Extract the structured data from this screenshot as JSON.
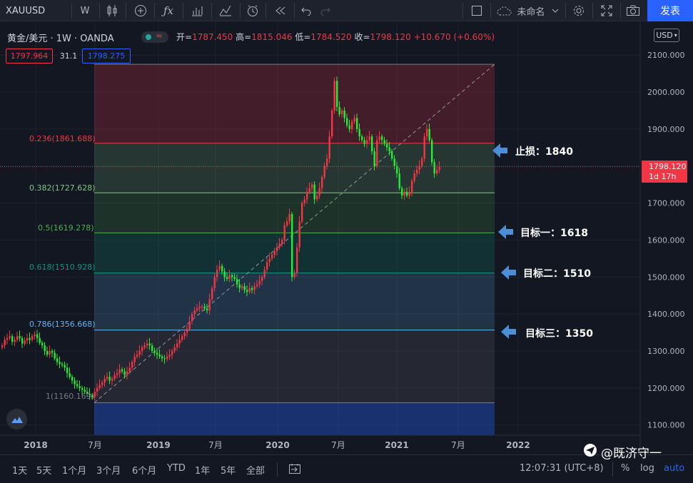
{
  "toolbar": {
    "symbol": "XAUUSD",
    "interval": "W",
    "layout_name": "未命名",
    "publish_label": "发表"
  },
  "legend": {
    "title": "黄金/美元 · 1W · OANDA",
    "open_label": "开=",
    "open": "1787.450",
    "high_label": "高=",
    "high": "1815.046",
    "low_label": "低=",
    "low": "1784.520",
    "close_label": "收=",
    "close": "1798.120",
    "change": "+10.670 (+0.60%)",
    "bid": "1797.964",
    "spread": "31.1",
    "ask": "1798.275"
  },
  "currency": "USD",
  "price_axis": {
    "ticks": [
      "2100.000",
      "2000.000",
      "1900.000",
      "1800.000",
      "1700.000",
      "1600.000",
      "1500.000",
      "1400.000",
      "1300.000",
      "1200.000",
      "1100.000"
    ],
    "last_price": "1798.120",
    "countdown": "1d 17h"
  },
  "time_axis": {
    "ticks": [
      "2018",
      "7月",
      "2019",
      "7月",
      "2020",
      "7月",
      "2021",
      "7月",
      "2022"
    ]
  },
  "fib_levels": [
    {
      "label": "0.236(1861.688)",
      "color": "#f23645"
    },
    {
      "label": "0.382(1727.628)",
      "color": "#81c784"
    },
    {
      "label": "0.5(1619.278)",
      "color": "#4caf50"
    },
    {
      "label": "0.618(1510.928)",
      "color": "#089981"
    },
    {
      "label": "0.786(1356.668)",
      "color": "#64b5f6"
    },
    {
      "label": "1(1160.169)",
      "color": "#787b86"
    }
  ],
  "annotations": {
    "stop_loss": "止损：1840",
    "target1": "目标一：1618",
    "target2": "目标二：1510",
    "target3": "目标三：1350"
  },
  "bottom_bar": {
    "ranges": [
      "1天",
      "5天",
      "1个月",
      "3个月",
      "6个月",
      "YTD",
      "1年",
      "5年",
      "全部"
    ],
    "clock": "12:07:31 (UTC+8)",
    "percent": "%",
    "log": "log",
    "auto": "auto"
  },
  "watermark": "@既济守一",
  "colors": {
    "up": "#f23645",
    "down": "#22ee33",
    "accent": "#2962ff"
  },
  "chart_data": {
    "type": "candlestick",
    "x_unit": "week",
    "y_range": [
      1080,
      2100
    ],
    "close_series": [
      1315,
      1330,
      1335,
      1340,
      1325,
      1330,
      1340,
      1335,
      1320,
      1328,
      1335,
      1330,
      1340,
      1345,
      1335,
      1322,
      1315,
      1300,
      1290,
      1300,
      1295,
      1280,
      1270,
      1265,
      1262,
      1255,
      1240,
      1230,
      1220,
      1210,
      1205,
      1200,
      1195,
      1190,
      1185,
      1180,
      1175,
      1190,
      1200,
      1208,
      1215,
      1225,
      1230,
      1220,
      1225,
      1235,
      1240,
      1250,
      1245,
      1235,
      1245,
      1255,
      1270,
      1285,
      1290,
      1300,
      1310,
      1315,
      1320,
      1315,
      1300,
      1295,
      1290,
      1285,
      1280,
      1278,
      1285,
      1290,
      1300,
      1310,
      1320,
      1330,
      1340,
      1350,
      1360,
      1380,
      1400,
      1410,
      1415,
      1420,
      1420,
      1415,
      1410,
      1440,
      1470,
      1500,
      1520,
      1530,
      1515,
      1500,
      1495,
      1505,
      1500,
      1495,
      1480,
      1470,
      1475,
      1465,
      1460,
      1470,
      1465,
      1475,
      1480,
      1490,
      1500,
      1520,
      1540,
      1550,
      1560,
      1570,
      1580,
      1590,
      1600,
      1640,
      1650,
      1670,
      1500,
      1510,
      1580,
      1650,
      1700,
      1710,
      1730,
      1740,
      1750,
      1710,
      1720,
      1740,
      1770,
      1800,
      1820,
      1880,
      1950,
      2030,
      1960,
      1940,
      1950,
      1930,
      1910,
      1900,
      1920,
      1930,
      1900,
      1880,
      1870,
      1860,
      1870,
      1880,
      1840,
      1800,
      1870,
      1880,
      1870,
      1860,
      1850,
      1840,
      1820,
      1800,
      1780,
      1740,
      1720,
      1730,
      1720,
      1730,
      1760,
      1780,
      1790,
      1800,
      1820,
      1880,
      1900,
      1870,
      1810,
      1780,
      1790,
      1798
    ]
  }
}
